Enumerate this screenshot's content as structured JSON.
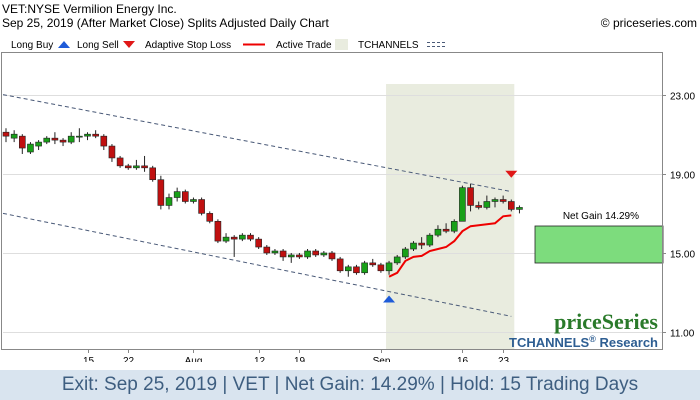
{
  "header": {
    "title": "VET:NYSE Vermilion Energy Inc.",
    "subtitle": "Sep 25, 2019 (After Market Close)  Splits Adjusted Daily Chart",
    "copyright": "© priceseries.com"
  },
  "legend": {
    "long_buy": "Long Buy",
    "long_sell": "Long Sell",
    "adaptive_stop": "Adaptive Stop Loss",
    "active_trade": "Active Trade",
    "tchannels": "TCHANNELS"
  },
  "colors": {
    "up_candle": "#18a018",
    "down_candle": "#c01010",
    "stop_line": "#ee0000",
    "active_trade_shade": "#e9ecdf",
    "channel": "#4a5a78",
    "gain_box": "#7ddc7d",
    "buy_arrow": "#1e5bd8",
    "sell_arrow": "#e01818",
    "footer_bg": "#d9e4ef",
    "footer_text": "#3e5e80"
  },
  "net_gain_label": "Net Gain 14.29%",
  "watermark": {
    "brand": "priceSeries",
    "research": "TCHANNELS",
    "research_reg": "®",
    "research_suffix": " Research"
  },
  "footer": "Exit: Sep 25, 2019 | VET | Net Gain: 14.29% | Hold: 15 Trading Days",
  "chart_data": {
    "type": "candlestick",
    "y_axis_position": "right",
    "ylim": [
      10.15,
      25.1
    ],
    "y_ticks": [
      "23.00",
      "19.00",
      "15.00",
      "11.00"
    ],
    "y_tick_values": [
      23,
      19,
      15,
      11
    ],
    "x_tick_labels": [
      {
        "label": "15",
        "index": 10
      },
      {
        "label": "22",
        "index": 15
      },
      {
        "label": "Aug",
        "index": 23
      },
      {
        "label": "12",
        "index": 31
      },
      {
        "label": "19",
        "index": 36
      },
      {
        "label": "Sep",
        "index": 46
      },
      {
        "label": "16",
        "index": 56
      },
      {
        "label": "23",
        "index": 61
      }
    ],
    "trading_days": 64,
    "active_trade": {
      "start_index": 47,
      "end_index": 62
    },
    "long_buy": {
      "index": 47,
      "price": 12.85
    },
    "long_sell": {
      "index": 62,
      "price": 18.8
    },
    "net_gain_pct": 14.29,
    "channels": [
      {
        "start": [
          0,
          23.0
        ],
        "end": [
          62,
          18.1
        ]
      },
      {
        "start": [
          0,
          17.0
        ],
        "end": [
          62,
          11.8
        ]
      }
    ],
    "adaptive_stop": [
      [
        47,
        13.8
      ],
      [
        48,
        14.0
      ],
      [
        49,
        14.6
      ],
      [
        50,
        14.8
      ],
      [
        51,
        14.85
      ],
      [
        52,
        15.1
      ],
      [
        53,
        15.2
      ],
      [
        54,
        15.3
      ],
      [
        55,
        15.6
      ],
      [
        56,
        16.1
      ],
      [
        57,
        16.35
      ],
      [
        58,
        16.4
      ],
      [
        59,
        16.45
      ],
      [
        60,
        16.5
      ],
      [
        61,
        16.85
      ],
      [
        62,
        16.9
      ]
    ],
    "candles": [
      {
        "o": 21.1,
        "h": 21.3,
        "l": 20.6,
        "c": 20.9
      },
      {
        "o": 20.8,
        "h": 21.2,
        "l": 20.6,
        "c": 21.0
      },
      {
        "o": 20.9,
        "h": 21.0,
        "l": 20.0,
        "c": 20.3
      },
      {
        "o": 20.1,
        "h": 20.6,
        "l": 20.0,
        "c": 20.5
      },
      {
        "o": 20.4,
        "h": 20.7,
        "l": 20.2,
        "c": 20.6
      },
      {
        "o": 20.6,
        "h": 20.9,
        "l": 20.5,
        "c": 20.8
      },
      {
        "o": 20.8,
        "h": 21.1,
        "l": 20.5,
        "c": 20.7
      },
      {
        "o": 20.7,
        "h": 20.8,
        "l": 20.4,
        "c": 20.6
      },
      {
        "o": 20.6,
        "h": 21.1,
        "l": 20.5,
        "c": 20.9
      },
      {
        "o": 20.9,
        "h": 21.3,
        "l": 20.6,
        "c": 20.9
      },
      {
        "o": 20.9,
        "h": 21.1,
        "l": 20.7,
        "c": 21.0
      },
      {
        "o": 21.0,
        "h": 21.2,
        "l": 20.8,
        "c": 20.9
      },
      {
        "o": 20.9,
        "h": 21.0,
        "l": 20.2,
        "c": 20.4
      },
      {
        "o": 20.4,
        "h": 20.5,
        "l": 19.6,
        "c": 19.8
      },
      {
        "o": 19.8,
        "h": 19.9,
        "l": 19.3,
        "c": 19.4
      },
      {
        "o": 19.4,
        "h": 19.5,
        "l": 19.2,
        "c": 19.3
      },
      {
        "o": 19.3,
        "h": 19.7,
        "l": 19.2,
        "c": 19.4
      },
      {
        "o": 19.4,
        "h": 19.9,
        "l": 19.1,
        "c": 19.3
      },
      {
        "o": 19.3,
        "h": 19.4,
        "l": 18.6,
        "c": 18.7
      },
      {
        "o": 18.7,
        "h": 18.9,
        "l": 17.2,
        "c": 17.4
      },
      {
        "o": 17.4,
        "h": 18.0,
        "l": 17.2,
        "c": 17.8
      },
      {
        "o": 17.8,
        "h": 18.3,
        "l": 17.6,
        "c": 18.1
      },
      {
        "o": 18.1,
        "h": 18.2,
        "l": 17.5,
        "c": 17.6
      },
      {
        "o": 17.6,
        "h": 17.8,
        "l": 17.5,
        "c": 17.7
      },
      {
        "o": 17.7,
        "h": 17.8,
        "l": 16.9,
        "c": 17.0
      },
      {
        "o": 17.0,
        "h": 17.1,
        "l": 16.5,
        "c": 16.6
      },
      {
        "o": 16.6,
        "h": 16.7,
        "l": 15.5,
        "c": 15.6
      },
      {
        "o": 15.6,
        "h": 16.0,
        "l": 15.5,
        "c": 15.8
      },
      {
        "o": 15.8,
        "h": 15.9,
        "l": 14.8,
        "c": 15.7
      },
      {
        "o": 15.7,
        "h": 16.0,
        "l": 15.6,
        "c": 15.9
      },
      {
        "o": 15.9,
        "h": 16.0,
        "l": 15.6,
        "c": 15.7
      },
      {
        "o": 15.7,
        "h": 15.8,
        "l": 15.2,
        "c": 15.3
      },
      {
        "o": 15.3,
        "h": 15.4,
        "l": 14.9,
        "c": 15.0
      },
      {
        "o": 15.0,
        "h": 15.2,
        "l": 14.9,
        "c": 15.1
      },
      {
        "o": 15.1,
        "h": 15.2,
        "l": 14.6,
        "c": 14.8
      },
      {
        "o": 14.8,
        "h": 15.0,
        "l": 14.5,
        "c": 14.9
      },
      {
        "o": 14.9,
        "h": 15.0,
        "l": 14.7,
        "c": 14.8
      },
      {
        "o": 14.8,
        "h": 15.2,
        "l": 14.7,
        "c": 15.1
      },
      {
        "o": 15.1,
        "h": 15.2,
        "l": 14.8,
        "c": 14.9
      },
      {
        "o": 14.9,
        "h": 15.1,
        "l": 14.8,
        "c": 15.0
      },
      {
        "o": 15.0,
        "h": 15.1,
        "l": 14.6,
        "c": 14.7
      },
      {
        "o": 14.7,
        "h": 14.8,
        "l": 14.0,
        "c": 14.1
      },
      {
        "o": 14.1,
        "h": 14.4,
        "l": 13.8,
        "c": 14.3
      },
      {
        "o": 14.3,
        "h": 14.4,
        "l": 13.9,
        "c": 14.0
      },
      {
        "o": 14.0,
        "h": 14.6,
        "l": 13.9,
        "c": 14.5
      },
      {
        "o": 14.5,
        "h": 14.7,
        "l": 14.3,
        "c": 14.4
      },
      {
        "o": 14.4,
        "h": 14.5,
        "l": 14.0,
        "c": 14.1
      },
      {
        "o": 14.1,
        "h": 14.6,
        "l": 13.9,
        "c": 14.5
      },
      {
        "o": 14.5,
        "h": 14.9,
        "l": 14.4,
        "c": 14.8
      },
      {
        "o": 14.8,
        "h": 15.3,
        "l": 14.7,
        "c": 15.2
      },
      {
        "o": 15.2,
        "h": 15.6,
        "l": 15.1,
        "c": 15.5
      },
      {
        "o": 15.5,
        "h": 15.8,
        "l": 15.2,
        "c": 15.4
      },
      {
        "o": 15.4,
        "h": 16.0,
        "l": 15.3,
        "c": 15.9
      },
      {
        "o": 15.9,
        "h": 16.4,
        "l": 15.8,
        "c": 16.2
      },
      {
        "o": 16.2,
        "h": 16.5,
        "l": 16.0,
        "c": 16.1
      },
      {
        "o": 16.1,
        "h": 16.7,
        "l": 16.0,
        "c": 16.6
      },
      {
        "o": 16.6,
        "h": 18.4,
        "l": 16.6,
        "c": 18.3
      },
      {
        "o": 18.3,
        "h": 18.5,
        "l": 17.1,
        "c": 17.4
      },
      {
        "o": 17.4,
        "h": 17.6,
        "l": 17.2,
        "c": 17.3
      },
      {
        "o": 17.3,
        "h": 17.9,
        "l": 17.2,
        "c": 17.6
      },
      {
        "o": 17.6,
        "h": 17.8,
        "l": 17.3,
        "c": 17.7
      },
      {
        "o": 17.7,
        "h": 17.9,
        "l": 17.5,
        "c": 17.6
      },
      {
        "o": 17.6,
        "h": 17.7,
        "l": 17.1,
        "c": 17.2
      },
      {
        "o": 17.2,
        "h": 17.4,
        "l": 17.0,
        "c": 17.3
      }
    ]
  }
}
